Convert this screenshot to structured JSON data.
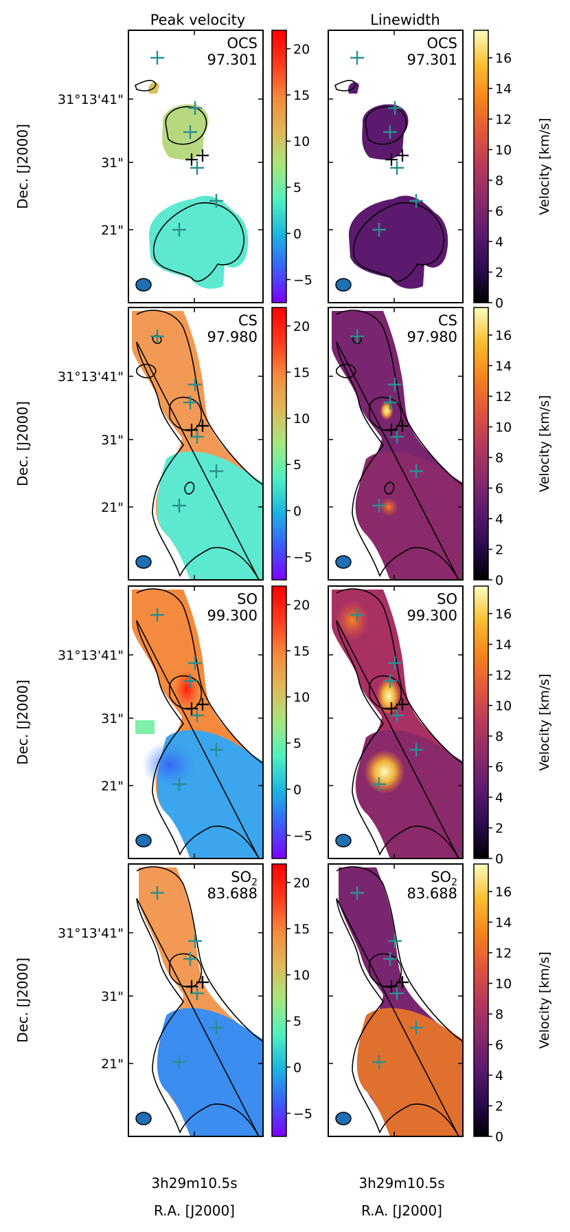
{
  "figure": {
    "column_titles": [
      "Peak velocity",
      "Linewidth"
    ],
    "y_axis_label": "Dec. [J2000]",
    "x_axis_label": "R.A. [J2000]",
    "x_tick_label": "3h29m10.5s",
    "y_tick_labels": [
      "31°13'41\"",
      "31\"",
      "21\""
    ],
    "colorbar_label": "Velocity [km/s]",
    "peak_colorbar_ticks": [
      "20",
      "15",
      "10",
      "5",
      "0",
      "−5"
    ],
    "peak_colorbar_values": [
      20,
      15,
      10,
      5,
      0,
      -5
    ],
    "peak_colorbar_range": [
      -7.5,
      22
    ],
    "width_colorbar_ticks": [
      "16",
      "14",
      "12",
      "10",
      "8",
      "6",
      "4",
      "2",
      "0"
    ],
    "width_colorbar_values": [
      16,
      14,
      12,
      10,
      8,
      6,
      4,
      2,
      0
    ],
    "width_colorbar_range": [
      0,
      17.8
    ],
    "colormaps": {
      "peak": [
        "#7f00ff",
        "#3b5ef8",
        "#1ab6e2",
        "#4ff0c0",
        "#a4e87c",
        "#e0b85a",
        "#f48a3e",
        "#ff3a1c",
        "#ff0000"
      ],
      "width": [
        "#000000",
        "#2a0b4e",
        "#5c1a6e",
        "#8a2a6a",
        "#b83a5a",
        "#e2563c",
        "#f7851c",
        "#fbbf33",
        "#fcfdbf"
      ]
    }
  },
  "chart_data": [
    {
      "type": "heatmap",
      "panel": "peak-velocity",
      "molecule": "OCS",
      "frequency": "97.301"
    },
    {
      "type": "heatmap",
      "panel": "linewidth",
      "molecule": "OCS",
      "frequency": "97.301"
    },
    {
      "type": "heatmap",
      "panel": "peak-velocity",
      "molecule": "CS",
      "frequency": "97.980"
    },
    {
      "type": "heatmap",
      "panel": "linewidth",
      "molecule": "CS",
      "frequency": "97.980"
    },
    {
      "type": "heatmap",
      "panel": "peak-velocity",
      "molecule": "SO",
      "frequency": "99.300"
    },
    {
      "type": "heatmap",
      "panel": "linewidth",
      "molecule": "SO",
      "frequency": "99.300"
    },
    {
      "type": "heatmap",
      "panel": "peak-velocity",
      "molecule": "SO",
      "molecule_sub": "2",
      "frequency": "83.688"
    },
    {
      "type": "heatmap",
      "panel": "linewidth",
      "molecule": "SO",
      "molecule_sub": "2",
      "frequency": "83.688"
    }
  ]
}
